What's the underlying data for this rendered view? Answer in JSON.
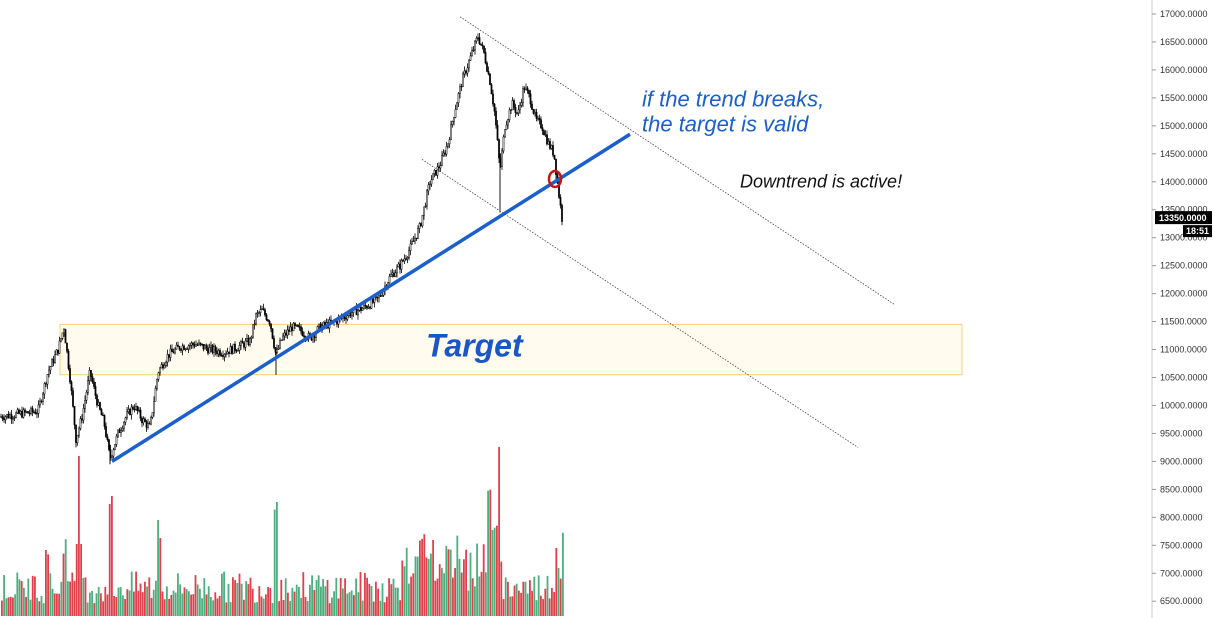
{
  "chart_data": {
    "type": "candlestick",
    "title": "",
    "y_axis": {
      "position": "right",
      "ticks": [
        17000,
        16500,
        16000,
        15500,
        15000,
        14500,
        14000,
        13500,
        13000,
        12500,
        12000,
        11500,
        11000,
        10500,
        10000,
        9500,
        9000,
        8500,
        8000,
        7500,
        7000,
        6500
      ],
      "tick_format": "0000",
      "range": [
        6200,
        17250
      ]
    },
    "price_tag": {
      "value": "13350.0000",
      "countdown": "18:51",
      "color": "#000000"
    },
    "price_series": {
      "color": "#000000",
      "keypoints": [
        [
          0,
          9800
        ],
        [
          20,
          9850
        ],
        [
          38,
          9900
        ],
        [
          48,
          10600
        ],
        [
          58,
          11000
        ],
        [
          64,
          11400
        ],
        [
          70,
          10500
        ],
        [
          76,
          9400
        ],
        [
          82,
          9800
        ],
        [
          90,
          10600
        ],
        [
          98,
          10000
        ],
        [
          104,
          9700
        ],
        [
          110,
          9050
        ],
        [
          118,
          9500
        ],
        [
          126,
          9800
        ],
        [
          134,
          10000
        ],
        [
          142,
          9750
        ],
        [
          150,
          9600
        ],
        [
          158,
          10600
        ],
        [
          168,
          10900
        ],
        [
          180,
          11050
        ],
        [
          195,
          11100
        ],
        [
          210,
          11000
        ],
        [
          224,
          10950
        ],
        [
          238,
          11050
        ],
        [
          250,
          11150
        ],
        [
          256,
          11600
        ],
        [
          262,
          11700
        ],
        [
          270,
          11500
        ],
        [
          276,
          10900
        ],
        [
          282,
          11200
        ],
        [
          292,
          11400
        ],
        [
          300,
          11350
        ],
        [
          310,
          11200
        ],
        [
          320,
          11400
        ],
        [
          336,
          11500
        ],
        [
          350,
          11650
        ],
        [
          364,
          11750
        ],
        [
          378,
          11900
        ],
        [
          390,
          12300
        ],
        [
          400,
          12500
        ],
        [
          410,
          12800
        ],
        [
          420,
          13200
        ],
        [
          430,
          14000
        ],
        [
          440,
          14300
        ],
        [
          448,
          14700
        ],
        [
          455,
          15300
        ],
        [
          462,
          15800
        ],
        [
          470,
          16200
        ],
        [
          478,
          16600
        ],
        [
          484,
          16300
        ],
        [
          490,
          15800
        ],
        [
          495,
          15200
        ],
        [
          500,
          14200
        ],
        [
          505,
          15000
        ],
        [
          512,
          15400
        ],
        [
          518,
          15200
        ],
        [
          524,
          15700
        ],
        [
          530,
          15500
        ],
        [
          536,
          15100
        ],
        [
          542,
          15000
        ],
        [
          548,
          14700
        ],
        [
          554,
          14500
        ],
        [
          558,
          13900
        ],
        [
          562,
          13350
        ]
      ],
      "candle_width_units": 1.5
    },
    "volume": {
      "colors": {
        "up": "#4caf7d",
        "down": "#e0404a"
      },
      "peaks": [
        {
          "x": 46,
          "v": 0.55
        },
        {
          "x": 64,
          "v": 0.6
        },
        {
          "x": 78,
          "v": 1.0
        },
        {
          "x": 110,
          "v": 1.0
        },
        {
          "x": 158,
          "v": 0.75
        },
        {
          "x": 275,
          "v": 0.95
        },
        {
          "x": 488,
          "v": 0.82
        },
        {
          "x": 498,
          "v": 0.85
        },
        {
          "x": 556,
          "v": 0.5
        },
        {
          "x": 562,
          "v": 0.52
        }
      ]
    },
    "trendlines": [
      {
        "name": "uptrend",
        "color": "#1a5fcc",
        "width": 3.5,
        "from": [
          112,
          9000
        ],
        "to": [
          630,
          14850
        ]
      },
      {
        "name": "channel-upper",
        "color": "#444444",
        "width": 0.8,
        "from": [
          460,
          16950
        ],
        "to": [
          895,
          11800
        ]
      },
      {
        "name": "channel-lower",
        "color": "#444444",
        "width": 0.8,
        "from": [
          422,
          14400
        ],
        "to": [
          858,
          9250
        ]
      }
    ],
    "target_zone": {
      "from_x": 60,
      "to_x": 962,
      "y_top": 11450,
      "y_bottom": 10550,
      "fill": "#fffbee",
      "stroke": "#f5d070"
    },
    "break_marker": {
      "x": 555,
      "y": 14050,
      "color": "#cc1111"
    },
    "annotations": [
      {
        "id": "trend-break",
        "lines": [
          "if the trend breaks,",
          "the target is valid"
        ],
        "x": 642,
        "y": 15350,
        "style": "trend"
      },
      {
        "id": "downtrend",
        "lines": [
          "Downtrend is active!"
        ],
        "x": 740,
        "y": 13900,
        "style": "down"
      },
      {
        "id": "target",
        "lines": [
          "Target"
        ],
        "x": 426,
        "y": 10880,
        "style": "target"
      }
    ]
  }
}
